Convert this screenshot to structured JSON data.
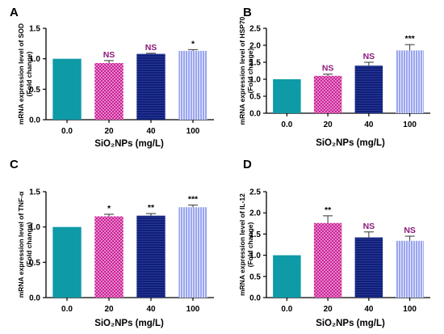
{
  "colors": {
    "teal": "#0e9aa7",
    "magenta": "#c8148f",
    "navy": "#0f1f7a",
    "lavender": "#9aa6f0",
    "ns_text": "#8b1a7a",
    "sig_text": "#000000",
    "axis": "#000000"
  },
  "icons": [
    "none"
  ],
  "chart_data": [
    {
      "type": "bar",
      "panel": "A",
      "categories": [
        "0.0",
        "20",
        "40",
        "100"
      ],
      "values": [
        1.0,
        0.93,
        1.08,
        1.13
      ],
      "errors": [
        0,
        0.04,
        0.01,
        0.02
      ],
      "significance": [
        "",
        "NS",
        "NS",
        "*"
      ],
      "ylabel_line1": "mRNA expression level of SOD",
      "ylabel_line2": "(Fold change)",
      "xlabel": "SiO₂NPs (mg/L)",
      "ylim": [
        0.0,
        1.5
      ],
      "yticks": [
        "0.0",
        "0.5",
        "1.0",
        "1.5"
      ],
      "grid": false,
      "legend": "none"
    },
    {
      "type": "bar",
      "panel": "B",
      "categories": [
        "0.0",
        "20",
        "40",
        "100"
      ],
      "values": [
        1.0,
        1.1,
        1.4,
        1.85
      ],
      "errors": [
        0,
        0.05,
        0.1,
        0.17
      ],
      "significance": [
        "",
        "NS",
        "NS",
        "***"
      ],
      "ylabel_line1": "mRNA expression level of HSP70",
      "ylabel_line2": "(Fold change)",
      "xlabel": "SiO₂NPs (mg/L)",
      "ylim": [
        0.0,
        2.5
      ],
      "yticks": [
        "0.0",
        "0.5",
        "1.0",
        "1.5",
        "2.0",
        "2.5"
      ],
      "grid": false,
      "legend": "none"
    },
    {
      "type": "bar",
      "panel": "C",
      "categories": [
        "0.0",
        "20",
        "40",
        "100"
      ],
      "values": [
        1.0,
        1.15,
        1.16,
        1.28
      ],
      "errors": [
        0,
        0.03,
        0.03,
        0.03
      ],
      "significance": [
        "",
        "*",
        "**",
        "***"
      ],
      "ylabel_line1": "mRNA expression level of TNF-α",
      "ylabel_line2": "(Fold change)",
      "xlabel": "SiO₂NPs (mg/L)",
      "ylim": [
        0.0,
        1.5
      ],
      "yticks": [
        "0.0",
        "0.5",
        "1.0",
        "1.5"
      ],
      "grid": false,
      "legend": "none"
    },
    {
      "type": "bar",
      "panel": "D",
      "categories": [
        "0.0",
        "20",
        "40",
        "100"
      ],
      "values": [
        1.0,
        1.76,
        1.42,
        1.34
      ],
      "errors": [
        0,
        0.17,
        0.13,
        0.11
      ],
      "significance": [
        "",
        "**",
        "NS",
        "NS"
      ],
      "ylabel_line1": "mRNA expression level of IL-12",
      "ylabel_line2": "(Fold change)",
      "xlabel": "SiO₂NPs (mg/L)",
      "ylim": [
        0.0,
        2.5
      ],
      "yticks": [
        "0.0",
        "0.5",
        "1.0",
        "1.5",
        "2.0",
        "2.5"
      ],
      "grid": false,
      "legend": "none"
    }
  ]
}
